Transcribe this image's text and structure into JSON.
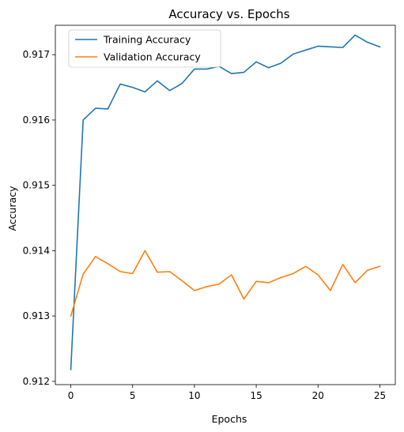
{
  "chart_data": {
    "type": "line",
    "title": "Accuracy vs. Epochs",
    "xlabel": "Epochs",
    "ylabel": "Accuracy",
    "xlim": [
      -1.25,
      26.25
    ],
    "ylim": [
      0.91195,
      0.91745
    ],
    "xticks": [
      0,
      5,
      10,
      15,
      20,
      25
    ],
    "xtick_labels": [
      "0",
      "5",
      "10",
      "15",
      "20",
      "25"
    ],
    "yticks": [
      0.912,
      0.913,
      0.914,
      0.915,
      0.916,
      0.917
    ],
    "ytick_labels": [
      "0.912",
      "0.913",
      "0.914",
      "0.915",
      "0.916",
      "0.917"
    ],
    "grid": false,
    "legend_position": "top-left",
    "x": [
      0,
      1,
      2,
      3,
      4,
      5,
      6,
      7,
      8,
      9,
      10,
      11,
      12,
      13,
      14,
      15,
      16,
      17,
      18,
      19,
      20,
      21,
      22,
      23,
      24,
      25
    ],
    "series": [
      {
        "name": "Training Accuracy",
        "color": "#1f77b4",
        "values": [
          0.91218,
          0.916,
          0.91618,
          0.91617,
          0.91655,
          0.9165,
          0.91643,
          0.9166,
          0.91645,
          0.91656,
          0.91678,
          0.91678,
          0.91682,
          0.91671,
          0.91673,
          0.91689,
          0.9168,
          0.91687,
          0.91701,
          0.91707,
          0.91713,
          0.91712,
          0.91711,
          0.9173,
          0.91719,
          0.91712
        ]
      },
      {
        "name": "Validation Accuracy",
        "color": "#ff7f0e",
        "values": [
          0.913,
          0.91364,
          0.91391,
          0.9138,
          0.91368,
          0.91365,
          0.914,
          0.91367,
          0.91368,
          0.91354,
          0.91339,
          0.91345,
          0.91349,
          0.91363,
          0.91326,
          0.91353,
          0.91351,
          0.91359,
          0.91365,
          0.91376,
          0.91363,
          0.91339,
          0.91379,
          0.91351,
          0.9137,
          0.91376
        ]
      }
    ]
  }
}
